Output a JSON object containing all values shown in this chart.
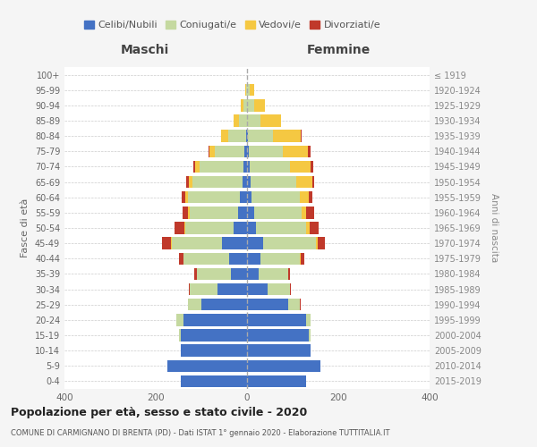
{
  "age_groups": [
    "0-4",
    "5-9",
    "10-14",
    "15-19",
    "20-24",
    "25-29",
    "30-34",
    "35-39",
    "40-44",
    "45-49",
    "50-54",
    "55-59",
    "60-64",
    "65-69",
    "70-74",
    "75-79",
    "80-84",
    "85-89",
    "90-94",
    "95-99",
    "100+"
  ],
  "birth_years": [
    "2015-2019",
    "2010-2014",
    "2005-2009",
    "2000-2004",
    "1995-1999",
    "1990-1994",
    "1985-1989",
    "1980-1984",
    "1975-1979",
    "1970-1974",
    "1965-1969",
    "1960-1964",
    "1955-1959",
    "1950-1954",
    "1945-1949",
    "1940-1944",
    "1935-1939",
    "1930-1934",
    "1925-1929",
    "1920-1924",
    "≤ 1919"
  ],
  "colors": {
    "celibi": "#4472c4",
    "coniugati": "#c5d9a0",
    "vedovi": "#f5c842",
    "divorziati": "#c0392b"
  },
  "maschi": {
    "celibi": [
      145,
      175,
      145,
      145,
      140,
      100,
      65,
      35,
      40,
      55,
      30,
      20,
      15,
      10,
      8,
      5,
      2,
      0,
      0,
      0,
      0
    ],
    "coniugati": [
      0,
      0,
      0,
      5,
      15,
      30,
      60,
      75,
      100,
      110,
      105,
      105,
      115,
      110,
      95,
      65,
      40,
      18,
      8,
      2,
      0
    ],
    "vedovi": [
      0,
      0,
      0,
      0,
      0,
      0,
      0,
      0,
      0,
      2,
      3,
      4,
      5,
      8,
      10,
      12,
      15,
      12,
      5,
      2,
      0
    ],
    "divorziati": [
      0,
      0,
      0,
      0,
      0,
      0,
      2,
      5,
      10,
      20,
      20,
      12,
      8,
      5,
      5,
      3,
      0,
      0,
      0,
      0,
      0
    ]
  },
  "femmine": {
    "nubili": [
      130,
      160,
      140,
      135,
      130,
      90,
      45,
      25,
      30,
      35,
      20,
      15,
      10,
      8,
      5,
      4,
      2,
      0,
      0,
      0,
      0
    ],
    "coniugate": [
      0,
      0,
      0,
      5,
      10,
      25,
      50,
      65,
      85,
      115,
      110,
      105,
      105,
      100,
      90,
      75,
      55,
      30,
      15,
      5,
      0
    ],
    "vedove": [
      0,
      0,
      0,
      0,
      0,
      0,
      0,
      0,
      2,
      5,
      8,
      10,
      20,
      35,
      45,
      55,
      60,
      45,
      25,
      10,
      0
    ],
    "divorziate": [
      0,
      0,
      0,
      0,
      0,
      2,
      2,
      5,
      8,
      15,
      18,
      18,
      8,
      5,
      5,
      5,
      2,
      0,
      0,
      0,
      0
    ]
  },
  "xlim": 400,
  "xticks": [
    -400,
    -200,
    0,
    200,
    400
  ],
  "title": "Popolazione per età, sesso e stato civile - 2020",
  "subtitle": "COMUNE DI CARMIGNANO DI BRENTA (PD) - Dati ISTAT 1° gennaio 2020 - Elaborazione TUTTITALIA.IT",
  "xlabel_maschi": "Maschi",
  "xlabel_femmine": "Femmine",
  "ylabel": "Fasce di età",
  "ylabel_right": "Anni di nascita",
  "legend_labels": [
    "Celibi/Nubili",
    "Coniugati/e",
    "Vedovi/e",
    "Divorziati/e"
  ],
  "bg_color": "#f5f5f5",
  "plot_bg_color": "#ffffff"
}
